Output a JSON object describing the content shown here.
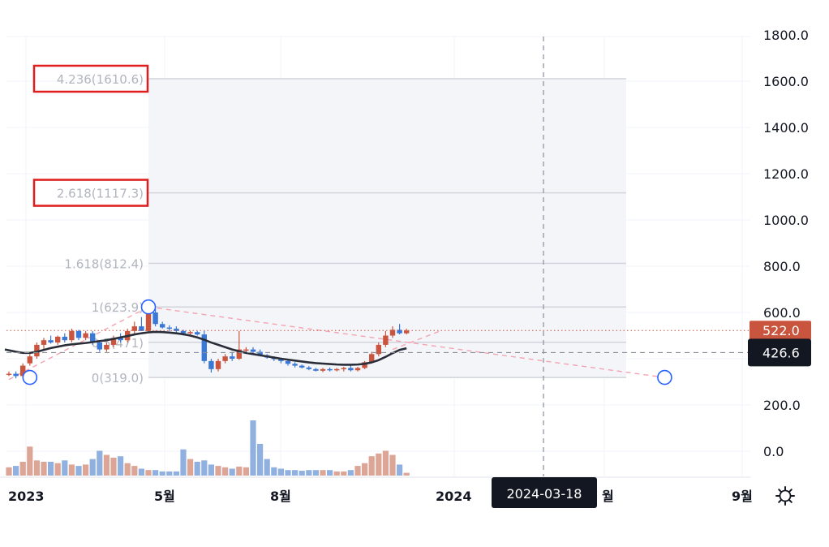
{
  "chart_data": {
    "type": "candlestick",
    "title": "",
    "xlabel": "",
    "ylabel": "",
    "ylim": [
      -100,
      1850
    ],
    "y_ticks": [
      0,
      200,
      400,
      600,
      800,
      1000,
      1200,
      1400,
      1600,
      1800
    ],
    "y_tick_labels": [
      "0.0",
      "200.0",
      "",
      "600.0",
      "800.0",
      "1000.0",
      "1200.0",
      "1400.0",
      "1600.0",
      "1800.0"
    ],
    "x_tick_labels": [
      "2023",
      "5월",
      "8월",
      "2024",
      "월",
      "9월"
    ],
    "crosshair_date": "2024-03-18",
    "price_tags": {
      "last": {
        "label": "522.0",
        "value": 522,
        "color": "#c9553f"
      },
      "crosshair": {
        "label": "426.6",
        "value": 426.6,
        "color": "#131722"
      }
    },
    "fib_levels": [
      {
        "label": "4.236(1610.6)",
        "value": 1610.6,
        "highlighted": true
      },
      {
        "label": "2.618(1117.3)",
        "value": 1117.3,
        "highlighted": true
      },
      {
        "label": "1.618(812.4)",
        "value": 812.4,
        "highlighted": false
      },
      {
        "label": "1(623.9)",
        "value": 623.9,
        "highlighted": false
      },
      {
        "label": "0.5(471)",
        "value": 471,
        "highlighted": false
      },
      {
        "label": "0(319.0)",
        "value": 319.0,
        "highlighted": false
      }
    ],
    "candles": [
      [
        330,
        345,
        325,
        335
      ],
      [
        335,
        345,
        315,
        325
      ],
      [
        325,
        380,
        320,
        370
      ],
      [
        380,
        420,
        370,
        410
      ],
      [
        410,
        470,
        400,
        460
      ],
      [
        460,
        490,
        440,
        480
      ],
      [
        480,
        500,
        465,
        470
      ],
      [
        470,
        500,
        460,
        495
      ],
      [
        495,
        510,
        470,
        480
      ],
      [
        480,
        530,
        470,
        520
      ],
      [
        520,
        525,
        480,
        490
      ],
      [
        490,
        520,
        480,
        510
      ],
      [
        510,
        520,
        460,
        470
      ],
      [
        470,
        480,
        430,
        440
      ],
      [
        440,
        470,
        430,
        460
      ],
      [
        460,
        500,
        450,
        490
      ],
      [
        490,
        510,
        470,
        480
      ],
      [
        480,
        530,
        470,
        520
      ],
      [
        520,
        560,
        500,
        540
      ],
      [
        540,
        580,
        520,
        520
      ],
      [
        520,
        610,
        510,
        600
      ],
      [
        600,
        620,
        540,
        550
      ],
      [
        550,
        560,
        530,
        535
      ],
      [
        535,
        545,
        520,
        530
      ],
      [
        530,
        540,
        510,
        520
      ],
      [
        520,
        525,
        500,
        510
      ],
      [
        510,
        520,
        500,
        515
      ],
      [
        515,
        520,
        500,
        505
      ],
      [
        505,
        520,
        380,
        390
      ],
      [
        390,
        400,
        340,
        355
      ],
      [
        355,
        400,
        345,
        390
      ],
      [
        390,
        420,
        380,
        410
      ],
      [
        410,
        430,
        390,
        400
      ],
      [
        400,
        520,
        395,
        440
      ],
      [
        440,
        450,
        430,
        440
      ],
      [
        440,
        450,
        420,
        430
      ],
      [
        430,
        440,
        410,
        415
      ],
      [
        415,
        420,
        400,
        405
      ],
      [
        405,
        410,
        390,
        398
      ],
      [
        398,
        405,
        380,
        390
      ],
      [
        390,
        395,
        370,
        378
      ],
      [
        378,
        385,
        362,
        370
      ],
      [
        370,
        375,
        358,
        362
      ],
      [
        362,
        368,
        350,
        355
      ],
      [
        355,
        360,
        345,
        348
      ],
      [
        348,
        360,
        342,
        355
      ],
      [
        355,
        362,
        345,
        350
      ],
      [
        350,
        360,
        345,
        355
      ],
      [
        355,
        365,
        345,
        360
      ],
      [
        360,
        370,
        345,
        350
      ],
      [
        350,
        365,
        345,
        360
      ],
      [
        360,
        390,
        355,
        385
      ],
      [
        385,
        430,
        380,
        420
      ],
      [
        420,
        470,
        410,
        460
      ],
      [
        460,
        520,
        450,
        500
      ],
      [
        500,
        540,
        490,
        525
      ],
      [
        525,
        550,
        505,
        510
      ],
      [
        510,
        530,
        505,
        522
      ]
    ],
    "volumes": [
      12,
      14,
      20,
      42,
      22,
      20,
      20,
      18,
      22,
      16,
      14,
      16,
      24,
      36,
      30,
      26,
      28,
      18,
      14,
      10,
      8,
      8,
      6,
      6,
      6,
      38,
      24,
      20,
      22,
      16,
      14,
      12,
      10,
      13,
      12,
      80,
      46,
      24,
      12,
      10,
      8,
      8,
      7,
      8,
      8,
      8,
      8,
      6,
      6,
      8,
      14,
      18,
      28,
      32,
      36,
      30,
      16,
      4
    ],
    "ma": [
      440,
      430,
      425,
      425,
      430,
      438,
      446,
      452,
      458,
      462,
      465,
      468,
      472,
      476,
      480,
      486,
      492,
      498,
      505,
      510,
      514,
      516,
      515,
      513,
      510,
      506,
      500,
      492,
      482,
      470,
      460,
      450,
      440,
      432,
      425,
      420,
      415,
      410,
      405,
      400,
      396,
      392,
      388,
      384,
      381,
      379,
      377,
      375,
      374,
      374,
      375,
      378,
      384,
      394,
      408,
      424,
      438,
      445
    ],
    "trendlines": [
      {
        "from": [
          0,
          310
        ],
        "to": [
          20,
          623.9
        ],
        "style": "dashed",
        "color": "#f4a3b1"
      },
      {
        "from": [
          20,
          623.9
        ],
        "to": [
          94,
          319.0
        ],
        "style": "dashed",
        "color": "#f4a3b1"
      },
      {
        "from": [
          55,
          440
        ],
        "to": [
          62,
          522
        ],
        "style": "dashed",
        "color": "#f4a3b1"
      }
    ],
    "anchor_points": [
      [
        3,
        319.0
      ],
      [
        20,
        623.9
      ],
      [
        94,
        319.0
      ]
    ]
  }
}
